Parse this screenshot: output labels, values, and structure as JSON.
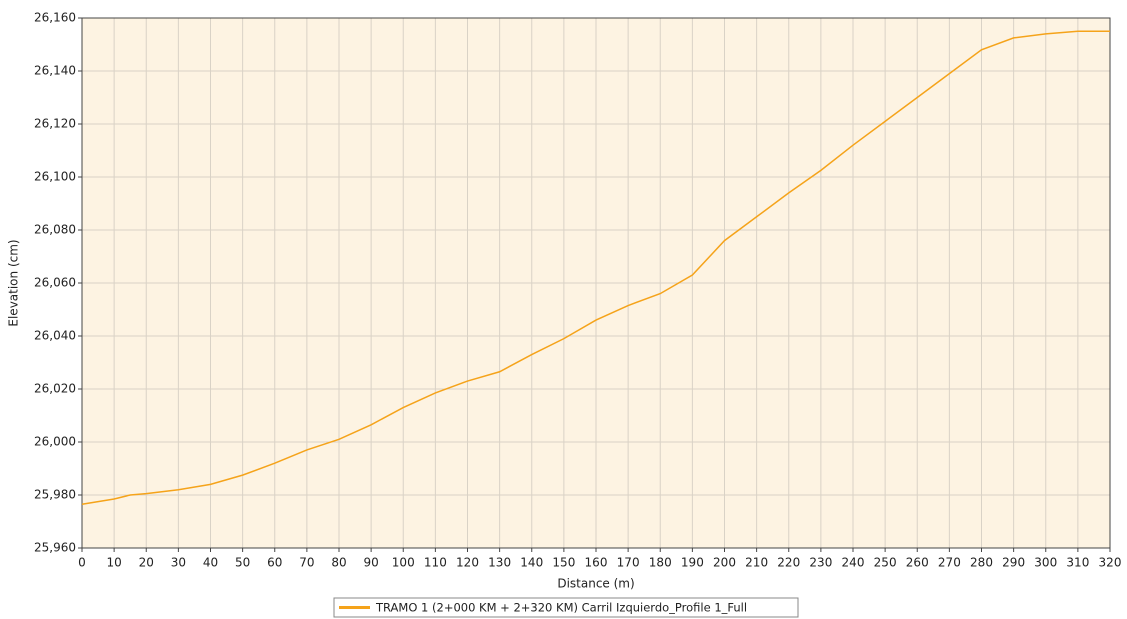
{
  "chart_data": {
    "type": "line",
    "xlabel": "Distance (m)",
    "ylabel": "Elevation (cm)",
    "x": [
      0,
      10,
      15,
      20,
      30,
      40,
      50,
      60,
      70,
      80,
      90,
      100,
      110,
      120,
      130,
      140,
      150,
      160,
      170,
      180,
      190,
      200,
      210,
      220,
      230,
      240,
      250,
      260,
      270,
      280,
      290,
      300,
      310,
      320
    ],
    "series": [
      {
        "name": "TRAMO 1 (2+000 KM + 2+320 KM) Carril Izquierdo_Profile 1_Full",
        "color": "#f5a31a",
        "values": [
          25976.5,
          25978.5,
          25980,
          25980.5,
          25982,
          25984,
          25987.5,
          25992,
          25997,
          26001,
          26006.5,
          26013,
          26018.5,
          26023,
          26026.5,
          26033,
          26039,
          26046,
          26051.5,
          26056,
          26063,
          26076,
          26085,
          26094,
          26102.5,
          26112,
          26121,
          26130,
          26139,
          26148,
          26152.5,
          26154,
          26155,
          26155
        ]
      }
    ],
    "xlim": [
      0,
      320
    ],
    "xticks": [
      0,
      10,
      20,
      30,
      40,
      50,
      60,
      70,
      80,
      90,
      100,
      110,
      120,
      130,
      140,
      150,
      160,
      170,
      180,
      190,
      200,
      210,
      220,
      230,
      240,
      250,
      260,
      270,
      280,
      290,
      300,
      310,
      320
    ],
    "ylim": [
      25960,
      26160
    ],
    "yticks": [
      {
        "value": 25960,
        "label": "25,960"
      },
      {
        "value": 25980,
        "label": "25,980"
      },
      {
        "value": 26000,
        "label": "26,000"
      },
      {
        "value": 26020,
        "label": "26,020"
      },
      {
        "value": 26040,
        "label": "26,040"
      },
      {
        "value": 26060,
        "label": "26,060"
      },
      {
        "value": 26080,
        "label": "26,080"
      },
      {
        "value": 26100,
        "label": "26,100"
      },
      {
        "value": 26120,
        "label": "26,120"
      },
      {
        "value": 26140,
        "label": "26,140"
      },
      {
        "value": 26160,
        "label": "26,160"
      }
    ],
    "grid": true,
    "legend": "bottom"
  }
}
